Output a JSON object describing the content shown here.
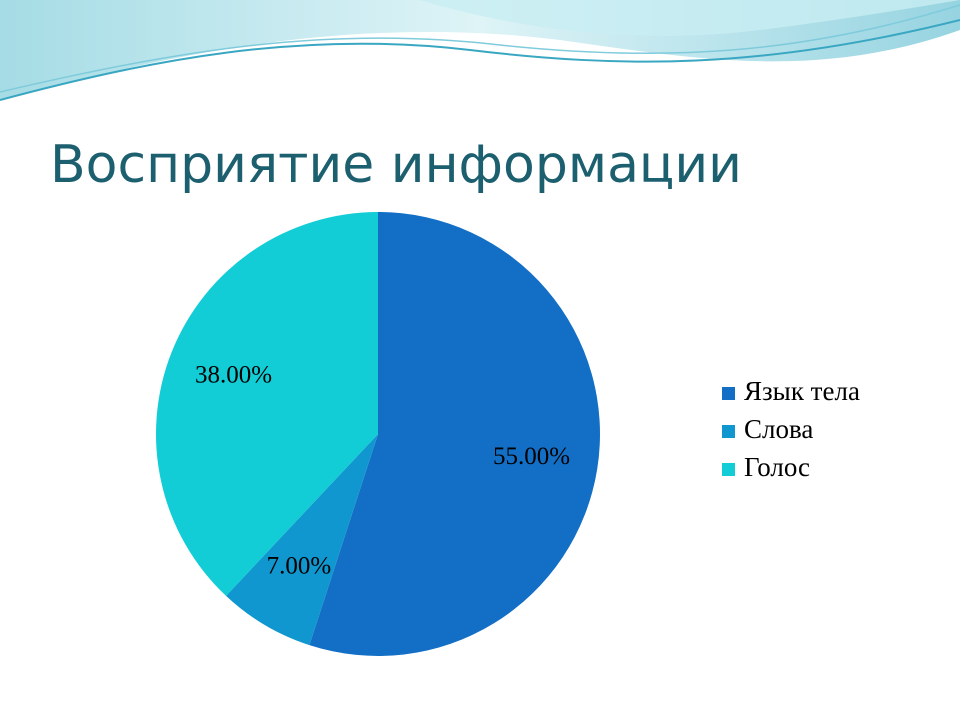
{
  "chart_data": {
    "type": "pie",
    "title": "Восприятие информации",
    "categories": [
      "Язык тела",
      "Слова",
      "Голос"
    ],
    "values": [
      55,
      7,
      38
    ],
    "value_labels": [
      "55.00%",
      "7.00%",
      "38.00%"
    ],
    "colors": [
      "#136fc6",
      "#1097cf",
      "#12cdd6"
    ],
    "legend": "right"
  }
}
